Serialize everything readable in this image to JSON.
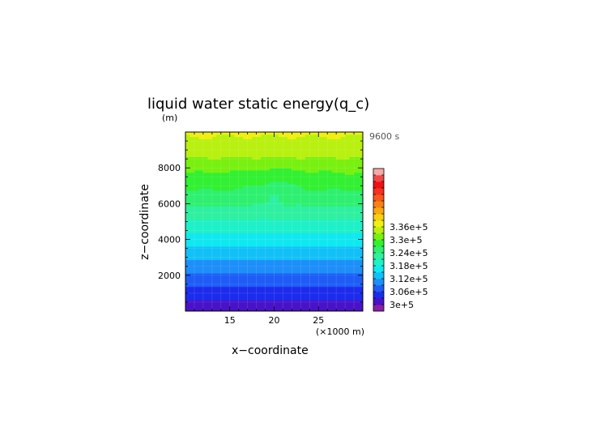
{
  "chart_data": {
    "type": "heatmap",
    "title": "liquid water static energy(q_c)",
    "y_unit": "(m)",
    "xlabel": "x−coordinate",
    "ylabel": "z−coordinate",
    "x_unit": "(×1000 m)",
    "time_label": "9600 s",
    "xlim": [
      10,
      30
    ],
    "ylim": [
      0,
      10000
    ],
    "x_ticks": [
      "15",
      "20",
      "25"
    ],
    "x_tick_values": [
      15,
      20,
      25
    ],
    "y_ticks": [
      "2000",
      "4000",
      "6000",
      "8000"
    ],
    "y_tick_values": [
      2000,
      4000,
      6000,
      8000
    ],
    "grid": true,
    "colorbar": {
      "placement": "right",
      "min": 297000,
      "step": 3000,
      "labels": [
        "3.36e+5",
        "3.3e+5",
        "3.24e+5",
        "3.18e+5",
        "3.12e+5",
        "3.06e+5",
        "3e+5"
      ],
      "label_values": [
        336000,
        330000,
        324000,
        318000,
        312000,
        306000,
        300000
      ],
      "colors": [
        "#8a1ea8",
        "#4a12c8",
        "#1c2cec",
        "#1e5cf6",
        "#1e8ef8",
        "#12c0f8",
        "#10e8f0",
        "#1ef0c8",
        "#2ef0a0",
        "#2ef070",
        "#32f032",
        "#78f010",
        "#b8f010",
        "#f0f010",
        "#f8d010",
        "#f8a810",
        "#f88018",
        "#f85818",
        "#f83020",
        "#f01010",
        "#f04848",
        "#f8a8a8"
      ]
    },
    "level_profile": {
      "z": [
        0,
        500,
        1000,
        1500,
        2000,
        2500,
        3000,
        3500,
        4000,
        4500,
        5000,
        5500,
        6000,
        6500,
        7000,
        7500,
        8000,
        8500,
        9000,
        9500,
        10000
      ],
      "value": [
        300500,
        302500,
        304500,
        306500,
        308500,
        310500,
        312500,
        314500,
        316500,
        318500,
        320500,
        322500,
        324500,
        326000,
        327800,
        329300,
        330800,
        332600,
        334400,
        335400,
        336500
      ]
    },
    "plume": {
      "x_center": 20,
      "z_top": 7000,
      "x_width": 4
    }
  }
}
